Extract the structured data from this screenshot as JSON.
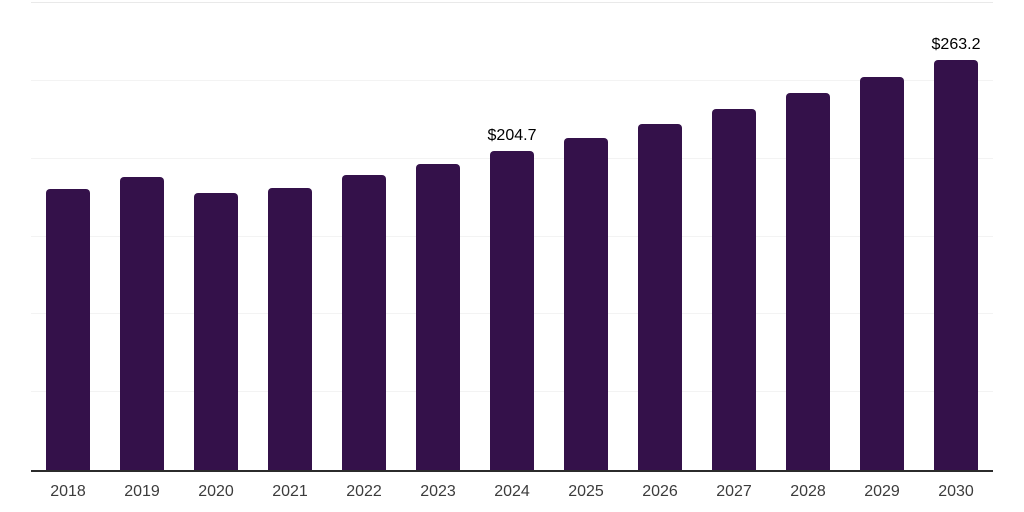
{
  "chart_data": {
    "type": "bar",
    "title": "",
    "xlabel": "",
    "ylabel": "",
    "categories": [
      "2018",
      "2019",
      "2020",
      "2021",
      "2022",
      "2023",
      "2024",
      "2025",
      "2026",
      "2027",
      "2028",
      "2029",
      "2030"
    ],
    "values": [
      180.4,
      188.1,
      177.8,
      181.0,
      189.4,
      196.4,
      204.7,
      213.4,
      222.6,
      232.1,
      242.0,
      252.4,
      263.2
    ],
    "bar_labels": [
      "",
      "",
      "",
      "",
      "",
      "",
      "$204.7",
      "",
      "",
      "",
      "",
      "",
      "$263.2"
    ],
    "ylim": [
      0,
      300
    ],
    "gridline_step": 50,
    "grid": true,
    "legend_position": "none"
  },
  "colors": {
    "bar": "#34114a",
    "axis_line": "#2b2b2b",
    "gridline": "#f3f3f3",
    "top_gridline": "#e9e9e9",
    "background": "#ffffff",
    "x_label": "#3c3c3c",
    "data_label": "#000000"
  }
}
